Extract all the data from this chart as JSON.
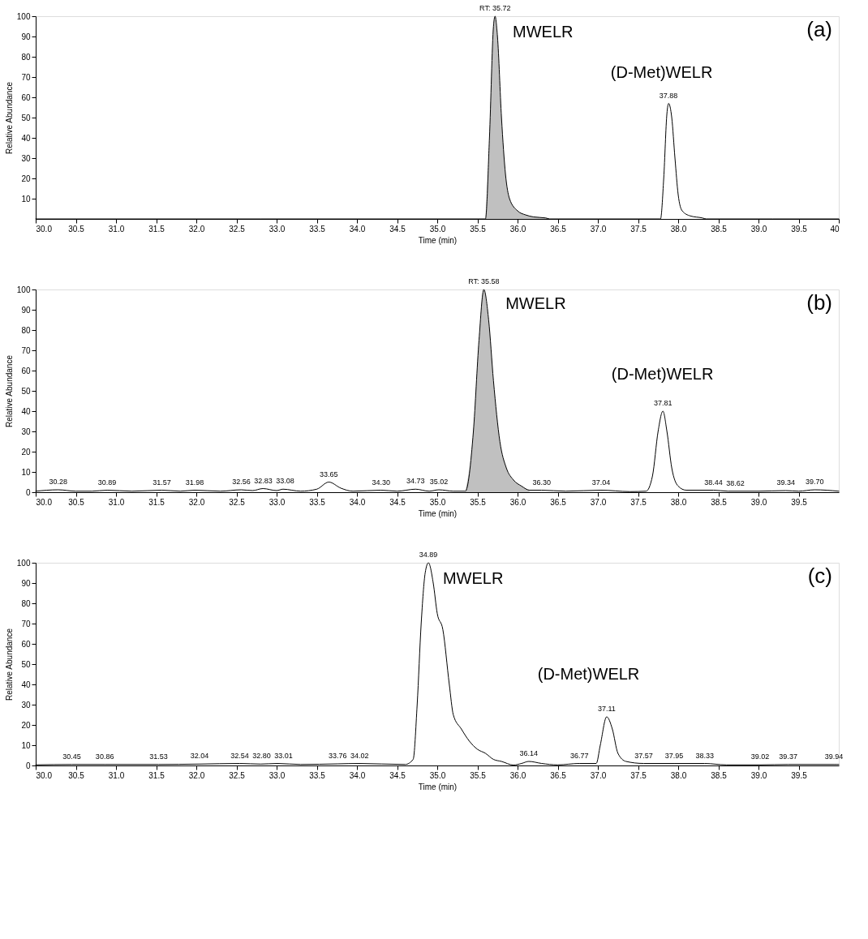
{
  "chart_data": [
    {
      "type": "line",
      "xlabel": "Time (min)",
      "ylabel": "Relative Abundance",
      "xlim": [
        30,
        40
      ],
      "ylim": [
        0,
        100
      ],
      "xticks": [
        {
          "value": 30,
          "label": "30.0"
        },
        30.5,
        {
          "value": 31,
          "label": "31.0"
        },
        31.5,
        {
          "value": 32,
          "label": "32.0"
        },
        32.5,
        {
          "value": 33,
          "label": "33.0"
        },
        33.5,
        {
          "value": 34,
          "label": "34.0"
        },
        34.5,
        {
          "value": 35,
          "label": "35.0"
        },
        35.5,
        {
          "value": 36,
          "label": "36.0"
        },
        36.5,
        {
          "value": 37,
          "label": "37.0"
        },
        37.5,
        {
          "value": 38,
          "label": "38.0"
        },
        38.5,
        {
          "value": 39,
          "label": "39.0"
        },
        39.5,
        40
      ],
      "yticks": [
        10,
        20,
        30,
        40,
        50,
        60,
        70,
        80,
        90,
        100
      ],
      "grid": false,
      "series": [
        {
          "type": "area",
          "color": "#c0c0c0",
          "x": [
            35.6,
            35.65,
            35.7,
            35.72,
            35.75,
            35.8,
            35.85,
            35.9,
            36.0,
            36.1,
            36.2,
            36.35,
            36.4
          ],
          "values": [
            0,
            40,
            95,
            100,
            90,
            50,
            22,
            10,
            4,
            2,
            1,
            0.5,
            0
          ]
        },
        {
          "color": "#000000",
          "x": [
            30,
            35.6,
            35.65,
            35.7,
            35.72,
            35.75,
            35.8,
            35.85,
            35.9,
            36.0,
            36.1,
            36.2,
            36.35,
            36.4,
            37.78,
            37.82,
            37.86,
            37.88,
            37.92,
            37.96,
            38.0,
            38.05,
            38.15,
            38.3,
            38.35,
            40
          ],
          "values": [
            0,
            0,
            40,
            95,
            100,
            90,
            50,
            22,
            10,
            4,
            2,
            1,
            0.5,
            0,
            0,
            20,
            52,
            57,
            50,
            30,
            12,
            4,
            1.5,
            0.5,
            0,
            0
          ]
        }
      ],
      "annotations": [
        "(a)",
        "MWELR",
        "(D-Met)WELR",
        {
          "text": "RT: 35.72",
          "x": 35.72,
          "y": 100
        },
        {
          "text": "37.88",
          "x": 37.88,
          "y": 57
        }
      ]
    },
    {
      "type": "line",
      "xlabel": "Time (min)",
      "ylabel": "Relative Abundance",
      "xlim": [
        30,
        40
      ],
      "ylim": [
        0,
        100
      ],
      "xticks": [
        {
          "value": 30,
          "label": "30.0"
        },
        30.5,
        {
          "value": 31,
          "label": "31.0"
        },
        31.5,
        {
          "value": 32,
          "label": "32.0"
        },
        32.5,
        {
          "value": 33,
          "label": "33.0"
        },
        33.5,
        {
          "value": 34,
          "label": "34.0"
        },
        34.5,
        {
          "value": 35,
          "label": "35.0"
        },
        35.5,
        {
          "value": 36,
          "label": "36.0"
        },
        36.5,
        {
          "value": 37,
          "label": "37.0"
        },
        37.5,
        {
          "value": 38,
          "label": "38.0"
        },
        38.5,
        {
          "value": 39,
          "label": "39.0"
        },
        39.5
      ],
      "yticks": [
        0,
        10,
        20,
        30,
        40,
        50,
        60,
        70,
        80,
        90,
        100
      ],
      "grid": false,
      "series": [
        {
          "type": "area",
          "color": "#c0c0c0",
          "x": [
            35.35,
            35.45,
            35.52,
            35.58,
            35.64,
            35.7,
            35.78,
            35.86,
            35.95,
            36.05,
            36.15
          ],
          "values": [
            0.5,
            30,
            75,
            100,
            85,
            55,
            25,
            12,
            6,
            3,
            1
          ]
        },
        {
          "color": "#000000",
          "x": [
            30,
            30.28,
            30.5,
            30.7,
            30.89,
            31.2,
            31.57,
            31.8,
            31.98,
            32.3,
            32.56,
            32.7,
            32.83,
            33.0,
            33.08,
            33.3,
            33.5,
            33.65,
            33.8,
            33.95,
            34.3,
            34.5,
            34.73,
            34.9,
            35.02,
            35.2,
            35.35,
            35.45,
            35.52,
            35.58,
            35.64,
            35.7,
            35.78,
            35.86,
            35.95,
            36.05,
            36.15,
            36.3,
            36.6,
            37.04,
            37.4,
            37.6,
            37.68,
            37.75,
            37.81,
            37.86,
            37.92,
            38.0,
            38.1,
            38.44,
            38.62,
            39.0,
            39.34,
            39.5,
            39.7,
            40
          ],
          "values": [
            0.5,
            1.2,
            0.5,
            0.5,
            1,
            0.5,
            1,
            0.5,
            1,
            0.5,
            1.2,
            0.8,
            1.8,
            0.8,
            1.5,
            0.5,
            1.5,
            5,
            2,
            0.5,
            1,
            0.5,
            1.5,
            0.5,
            1.2,
            0.5,
            0.5,
            30,
            75,
            100,
            85,
            55,
            25,
            12,
            6,
            3,
            1,
            1,
            0.5,
            1,
            0.3,
            0.5,
            8,
            30,
            40,
            30,
            12,
            3,
            1,
            1,
            0.5,
            0.5,
            0.8,
            0.5,
            1.2,
            0.5
          ]
        }
      ],
      "annotations": [
        "(b)",
        "MWELR",
        "(D-Met)WELR",
        {
          "text": "30.28",
          "x": 30.28,
          "y": 1.2
        },
        {
          "text": "30.89",
          "x": 30.89,
          "y": 1
        },
        {
          "text": "31.57",
          "x": 31.57,
          "y": 1
        },
        {
          "text": "31.98",
          "x": 31.98,
          "y": 1
        },
        {
          "text": "32.56",
          "x": 32.56,
          "y": 1.2
        },
        {
          "text": "32.83",
          "x": 32.83,
          "y": 1.8
        },
        {
          "text": "33.08",
          "x": 33.08,
          "y": 1.5
        },
        {
          "text": "33.65",
          "x": 33.65,
          "y": 5
        },
        {
          "text": "34.30",
          "x": 34.3,
          "y": 1
        },
        {
          "text": "34.73",
          "x": 34.73,
          "y": 1.5
        },
        {
          "text": "35.02",
          "x": 35.02,
          "y": 1.2
        },
        {
          "text": "RT: 35.58",
          "x": 35.58,
          "y": 100
        },
        {
          "text": "36.30",
          "x": 36.3,
          "y": 1
        },
        {
          "text": "37.04",
          "x": 37.04,
          "y": 1
        },
        {
          "text": "37.81",
          "x": 37.81,
          "y": 40
        },
        {
          "text": "38.44",
          "x": 38.44,
          "y": 1
        },
        {
          "text": "38.62",
          "x": 38.62,
          "y": 0.5
        },
        {
          "text": "39.34",
          "x": 39.34,
          "y": 0.8
        },
        {
          "text": "39.70",
          "x": 39.7,
          "y": 1.2
        }
      ]
    },
    {
      "type": "line",
      "xlabel": "Time (min)",
      "ylabel": "Relative Abundance",
      "xlim": [
        30,
        40
      ],
      "ylim": [
        0,
        100
      ],
      "xticks": [
        {
          "value": 30,
          "label": "30.0"
        },
        30.5,
        {
          "value": 31,
          "label": "31.0"
        },
        31.5,
        {
          "value": 32,
          "label": "32.0"
        },
        32.5,
        {
          "value": 33,
          "label": "33.0"
        },
        33.5,
        {
          "value": 34,
          "label": "34.0"
        },
        34.5,
        {
          "value": 35,
          "label": "35.0"
        },
        35.5,
        {
          "value": 36,
          "label": "36.0"
        },
        36.5,
        {
          "value": 37,
          "label": "37.0"
        },
        37.5,
        {
          "value": 38,
          "label": "38.0"
        },
        38.5,
        {
          "value": 39,
          "label": "39.0"
        },
        39.5
      ],
      "yticks": [
        0,
        10,
        20,
        30,
        40,
        50,
        60,
        70,
        80,
        90,
        100
      ],
      "grid": false,
      "series": [
        {
          "color": "#000000",
          "x": [
            30,
            30.45,
            30.86,
            31.53,
            32.04,
            32.54,
            32.8,
            33.01,
            33.3,
            33.76,
            34.02,
            34.6,
            34.7,
            34.75,
            34.8,
            34.85,
            34.89,
            34.95,
            35.0,
            35.07,
            35.15,
            35.2,
            35.3,
            35.4,
            35.5,
            35.6,
            35.7,
            35.8,
            35.95,
            36.05,
            36.14,
            36.3,
            36.5,
            36.77,
            36.98,
            37.03,
            37.11,
            37.18,
            37.25,
            37.35,
            37.57,
            37.95,
            38.33,
            38.6,
            39.02,
            39.37,
            39.94,
            40
          ],
          "values": [
            0.3,
            0.5,
            0.5,
            0.5,
            0.7,
            1,
            0.7,
            1,
            0.5,
            0.8,
            1,
            0.5,
            3,
            30,
            70,
            95,
            100,
            90,
            75,
            67,
            40,
            25,
            18,
            12,
            8,
            6,
            3,
            2,
            0.2,
            1,
            2,
            1,
            0.3,
            1,
            1,
            10,
            24,
            18,
            6,
            2,
            1,
            1,
            1,
            0.3,
            0.3,
            0.5,
            0.5,
            0.5
          ]
        }
      ],
      "annotations": [
        "(c)",
        "MWELR",
        "(D-Met)WELR",
        {
          "text": "30.45",
          "x": 30.45,
          "y": 0.5
        },
        {
          "text": "30.86",
          "x": 30.86,
          "y": 0.5
        },
        {
          "text": "31.53",
          "x": 31.53,
          "y": 0.5
        },
        {
          "text": "32.04",
          "x": 32.04,
          "y": 0.7
        },
        {
          "text": "32.54",
          "x": 32.54,
          "y": 1
        },
        {
          "text": "32.80",
          "x": 32.8,
          "y": 0.7
        },
        {
          "text": "33.01",
          "x": 33.01,
          "y": 1
        },
        {
          "text": "33.76",
          "x": 33.76,
          "y": 0.8
        },
        {
          "text": "34.02",
          "x": 34.02,
          "y": 1
        },
        {
          "text": "34.89",
          "x": 34.89,
          "y": 100
        },
        {
          "text": "36.14",
          "x": 36.14,
          "y": 2
        },
        {
          "text": "36.77",
          "x": 36.77,
          "y": 1
        },
        {
          "text": "37.11",
          "x": 37.11,
          "y": 24
        },
        {
          "text": "37.57",
          "x": 37.57,
          "y": 1
        },
        {
          "text": "37.95",
          "x": 37.95,
          "y": 1
        },
        {
          "text": "38.33",
          "x": 38.33,
          "y": 1
        },
        {
          "text": "39.02",
          "x": 39.02,
          "y": 0.3
        },
        {
          "text": "39.37",
          "x": 39.37,
          "y": 0.5
        },
        {
          "text": "39.94",
          "x": 39.94,
          "y": 0.5
        }
      ]
    }
  ]
}
